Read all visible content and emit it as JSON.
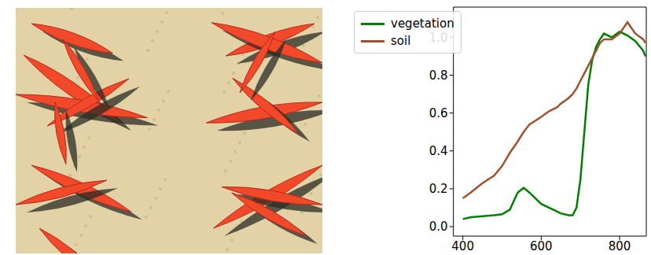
{
  "chart_data": {
    "type": "line",
    "x": [
      400,
      420,
      450,
      480,
      500,
      520,
      540,
      555,
      570,
      600,
      620,
      640,
      650,
      670,
      680,
      690,
      700,
      710,
      720,
      730,
      740,
      750,
      760,
      780,
      800,
      820,
      840,
      860,
      866
    ],
    "series": [
      {
        "name": "vegetation",
        "color": "#008000",
        "values": [
          0.04,
          0.05,
          0.055,
          0.06,
          0.065,
          0.09,
          0.18,
          0.205,
          0.18,
          0.12,
          0.1,
          0.08,
          0.07,
          0.06,
          0.06,
          0.1,
          0.25,
          0.5,
          0.75,
          0.88,
          0.95,
          0.99,
          1.02,
          1.0,
          1.03,
          1.01,
          0.98,
          0.93,
          0.9
        ]
      },
      {
        "name": "soil",
        "color": "#a0522d",
        "values": [
          0.15,
          0.18,
          0.23,
          0.27,
          0.32,
          0.39,
          0.45,
          0.5,
          0.54,
          0.58,
          0.61,
          0.63,
          0.65,
          0.68,
          0.7,
          0.73,
          0.77,
          0.81,
          0.85,
          0.89,
          0.93,
          0.97,
          0.99,
          0.99,
          1.02,
          1.08,
          1.02,
          0.99,
          0.97
        ]
      }
    ],
    "xlim": [
      376,
      868
    ],
    "xticks": [
      400,
      600,
      800
    ],
    "ylim": [
      -0.05,
      1.16
    ],
    "yticks": [
      {
        "value": 0,
        "label": "0.0"
      },
      0.2,
      0.4,
      0.6,
      0.8,
      {
        "value": 1,
        "label": "1.0"
      }
    ],
    "legend": "upper left"
  }
}
